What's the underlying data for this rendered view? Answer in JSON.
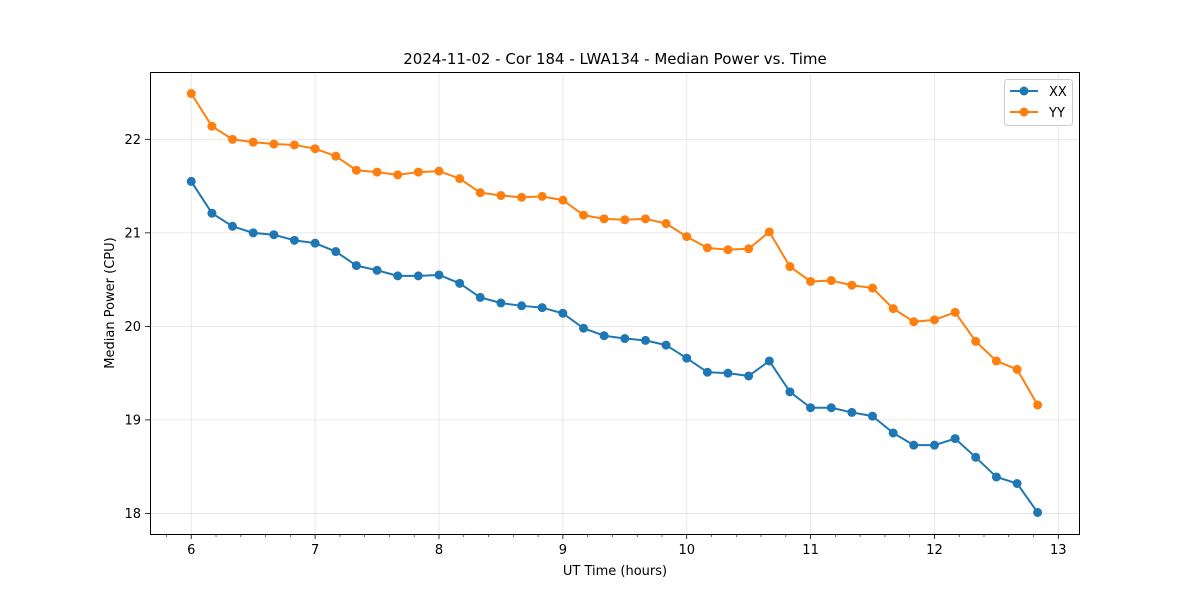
{
  "chart_data": {
    "type": "line",
    "title": "2024-11-02 - Cor 184 - LWA134 - Median Power vs. Time",
    "xlabel": "UT Time (hours)",
    "ylabel": "Median Power (CPU)",
    "xlim": [
      5.667,
      13.167
    ],
    "ylim": [
      17.78,
      22.72
    ],
    "xticks": [
      6,
      7,
      8,
      9,
      10,
      11,
      12,
      13
    ],
    "xtick_labels": [
      "6",
      "7",
      "8",
      "9",
      "10",
      "11",
      "12",
      "13"
    ],
    "yticks": [
      18,
      19,
      20,
      21,
      22
    ],
    "ytick_labels": [
      "18",
      "19",
      "20",
      "21",
      "22"
    ],
    "grid": true,
    "legend_position": "top-right",
    "x": [
      6.0,
      6.167,
      6.333,
      6.5,
      6.667,
      6.833,
      7.0,
      7.167,
      7.333,
      7.5,
      7.667,
      7.833,
      8.0,
      8.167,
      8.333,
      8.5,
      8.667,
      8.833,
      9.0,
      9.167,
      9.333,
      9.5,
      9.667,
      9.833,
      10.0,
      10.167,
      10.333,
      10.5,
      10.667,
      10.833,
      11.0,
      11.167,
      11.333,
      11.5,
      11.667,
      11.833,
      12.0,
      12.167,
      12.333,
      12.5,
      12.667,
      12.833
    ],
    "series": [
      {
        "name": "XX",
        "color": "#1f77b4",
        "values": [
          21.55,
          21.21,
          21.07,
          21.0,
          20.98,
          20.92,
          20.89,
          20.8,
          20.65,
          20.6,
          20.54,
          20.54,
          20.55,
          20.46,
          20.31,
          20.25,
          20.22,
          20.2,
          20.14,
          19.98,
          19.9,
          19.87,
          19.85,
          19.8,
          19.66,
          19.51,
          19.5,
          19.47,
          19.63,
          19.3,
          19.13,
          19.13,
          19.08,
          19.04,
          18.86,
          18.73,
          18.73,
          18.8,
          18.6,
          18.39,
          18.32,
          18.01
        ]
      },
      {
        "name": "YY",
        "color": "#ff7f0e",
        "values": [
          22.49,
          22.14,
          22.0,
          21.97,
          21.95,
          21.94,
          21.9,
          21.82,
          21.67,
          21.65,
          21.62,
          21.65,
          21.66,
          21.58,
          21.43,
          21.4,
          21.38,
          21.39,
          21.35,
          21.19,
          21.15,
          21.14,
          21.15,
          21.1,
          20.96,
          20.84,
          20.82,
          20.83,
          21.01,
          20.64,
          20.48,
          20.49,
          20.44,
          20.41,
          20.19,
          20.05,
          20.07,
          20.15,
          19.84,
          19.63,
          19.54,
          19.16
        ]
      }
    ]
  }
}
